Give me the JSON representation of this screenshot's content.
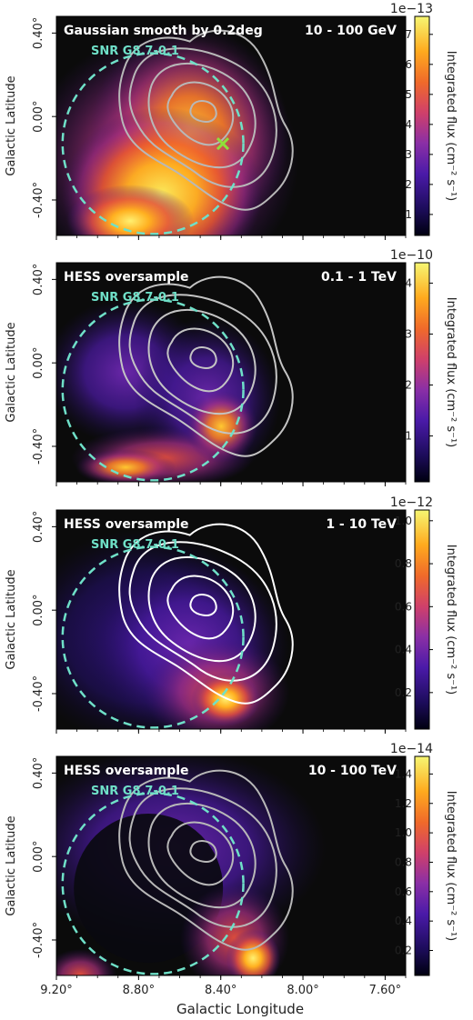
{
  "figure": {
    "xlabel": "Galactic Longitude",
    "ylabel": "Galactic Latitude",
    "x_ticks": [
      "9.20°",
      "8.80°",
      "8.40°",
      "8.00°",
      "7.60°"
    ],
    "y_ticks": [
      "0.40°",
      "0.00°",
      "-0.40°"
    ],
    "colorbar_label": "Integrated flux (cm⁻² s⁻¹)",
    "snr_label": "SNR G8.7-0.1",
    "colors": {
      "snr_circle": "#6fe0c8",
      "background": "#0b0b0b",
      "marker": "#8fe03a"
    }
  },
  "chart_data": [
    {
      "type": "heatmap",
      "method": "Gaussian smooth by 0.2deg",
      "energy": "10 - 100 GeV",
      "colorbar": {
        "exponent": "1e−13",
        "ticks": [
          "1",
          "2",
          "3",
          "4",
          "5",
          "6",
          "7"
        ],
        "range": [
          0.3,
          7.6
        ]
      },
      "xlim": [
        9.2,
        7.5
      ],
      "ylim": [
        -0.57,
        0.48
      ],
      "contour_color": "#b8b8b8",
      "marker": {
        "l": 8.39,
        "b": -0.13,
        "symbol": "x"
      },
      "snr": {
        "l": 8.73,
        "b": -0.13,
        "radius_deg": 0.44
      }
    },
    {
      "type": "heatmap",
      "method": "HESS oversample",
      "energy": "0.1 - 1 TeV",
      "colorbar": {
        "exponent": "1e−10",
        "ticks": [
          "1",
          "2",
          "3",
          "4"
        ],
        "range": [
          0.1,
          4.4
        ]
      },
      "xlim": [
        9.2,
        7.5
      ],
      "ylim": [
        -0.57,
        0.48
      ],
      "contour_color": "#c4c4c4",
      "snr": {
        "l": 8.73,
        "b": -0.13,
        "radius_deg": 0.44
      }
    },
    {
      "type": "heatmap",
      "method": "HESS oversample",
      "energy": "1 - 10 TeV",
      "colorbar": {
        "exponent": "1e−12",
        "ticks": [
          "0.2",
          "0.4",
          "0.6",
          "0.8",
          "1.0"
        ],
        "range": [
          0.03,
          1.05
        ]
      },
      "xlim": [
        9.2,
        7.5
      ],
      "ylim": [
        -0.57,
        0.48
      ],
      "contour_color": "#ffffff",
      "snr": {
        "l": 8.73,
        "b": -0.13,
        "radius_deg": 0.44
      }
    },
    {
      "type": "heatmap",
      "method": "HESS oversample",
      "energy": "10 - 100 TeV",
      "colorbar": {
        "exponent": "1e−14",
        "ticks": [
          "0.2",
          "0.4",
          "0.6",
          "0.8",
          "1.0",
          "1.2",
          "1.4"
        ],
        "range": [
          0.03,
          1.52
        ]
      },
      "xlim": [
        9.2,
        7.5
      ],
      "ylim": [
        -0.57,
        0.48
      ],
      "contour_color": "#b8b8b8",
      "snr": {
        "l": 8.73,
        "b": -0.13,
        "radius_deg": 0.44
      }
    }
  ]
}
